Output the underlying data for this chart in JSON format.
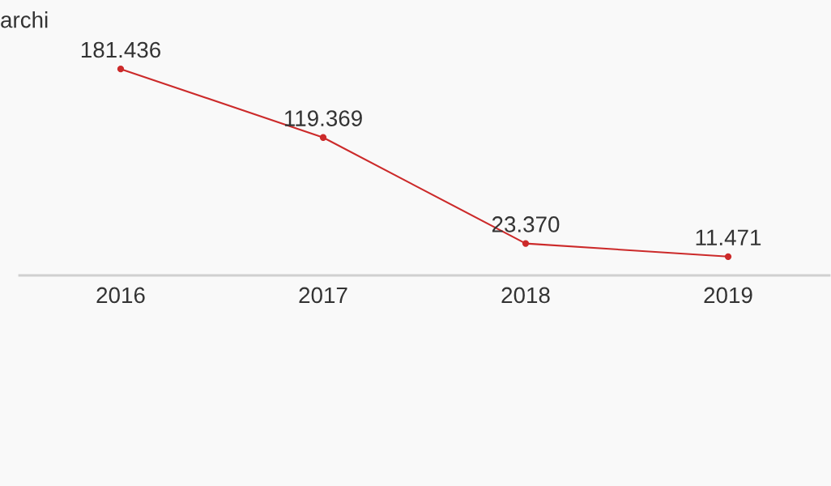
{
  "chart_data": {
    "type": "line",
    "title": "archi",
    "categories": [
      "2016",
      "2017",
      "2018",
      "2019"
    ],
    "series": [
      {
        "color": "#cc2a2a",
        "values": [
          181436,
          119369,
          23370,
          11471
        ],
        "value_labels": [
          "181.436",
          "119.369",
          "23.370",
          "11.471"
        ]
      }
    ],
    "tick_labels": "x",
    "marker": "circle",
    "line_style": "solid",
    "grid": false,
    "legend": false
  }
}
